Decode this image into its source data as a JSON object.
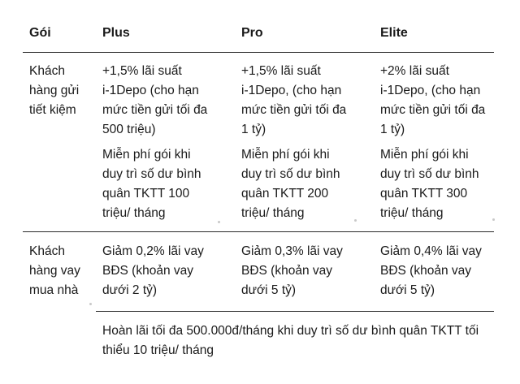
{
  "headers": {
    "col0": "Gói",
    "col1": "Plus",
    "col2": "Pro",
    "col3": "Elite"
  },
  "rows": {
    "savings": {
      "label": [
        "Khách",
        "hàng gửi",
        "tiết kiệm"
      ],
      "plus_rate": [
        "+1,5% lãi suất",
        "i-1Depo (cho hạn",
        "mức tiền gửi tối đa",
        "500 triệu)"
      ],
      "pro_rate": [
        "+1,5% lãi suất",
        "i-1Depo, (cho hạn",
        "mức tiền gửi tối đa",
        "1 tỷ)"
      ],
      "elite_rate": [
        "+2% lãi suất",
        "i-1Depo, (cho hạn",
        "mức tiền gửi tối đa",
        "1 tỷ)"
      ],
      "plus_fee": [
        "Miễn phí gói khi",
        "duy trì số dư bình",
        "quân TKTT 100",
        "triệu/ tháng"
      ],
      "pro_fee": [
        "Miễn phí gói khi",
        "duy trì số dư bình",
        "quân TKTT 200",
        "triệu/ tháng"
      ],
      "elite_fee": [
        "Miễn phí gói khi",
        "duy trì số dư bình",
        "quân TKTT 300",
        "triệu/ tháng"
      ]
    },
    "mortgage": {
      "label": [
        "Khách",
        "hàng vay",
        "mua nhà"
      ],
      "plus": [
        "Giảm 0,2% lãi vay",
        "BĐS (khoản vay",
        "dưới 2 tỷ)"
      ],
      "pro": [
        "Giảm 0,3% lãi vay",
        "BĐS (khoản vay",
        "dưới 5 tỷ)"
      ],
      "elite": [
        "Giảm 0,4% lãi vay",
        "BĐS (khoản vay",
        "dưới 5 tỷ)"
      ],
      "cashback": "Hoàn lãi tối đa 500.000đ/tháng khi duy trì số dư bình quân TKTT tối thiểu 10 triệu/ tháng"
    }
  }
}
